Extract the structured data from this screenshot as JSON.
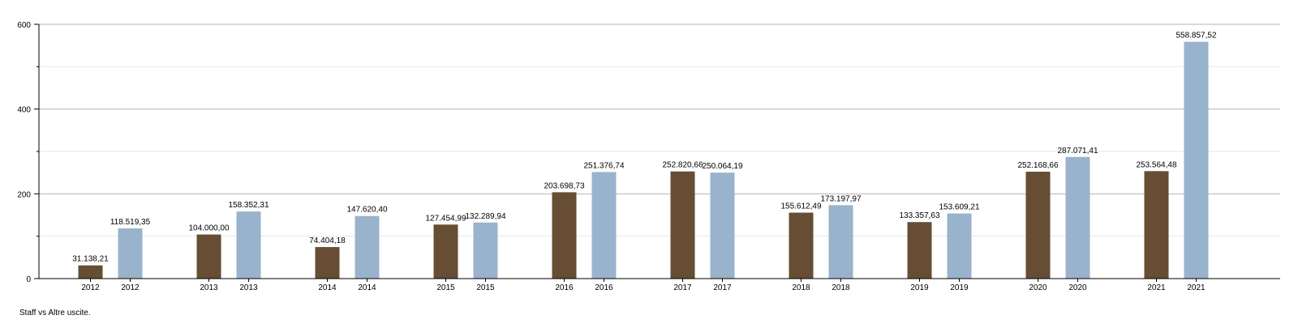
{
  "caption": "Staff vs Altre uscite.",
  "chart_data": {
    "type": "bar",
    "ylim": [
      0,
      600
    ],
    "yticks": [
      "0",
      "200",
      "400",
      "600"
    ],
    "y_tick_values": [
      0,
      200,
      400,
      600
    ],
    "grid": true,
    "legend": "none",
    "colors": {
      "staff": "#664d33",
      "altre": "#99b3cc",
      "grid_major": "#b3b3b3",
      "grid_minor": "#e6e6e6",
      "axis": "#000000"
    },
    "groups": [
      {
        "bars": [
          {
            "label": "2012",
            "value": 31.13821,
            "value_label": "31.138,21",
            "series": "staff"
          },
          {
            "label": "2012",
            "value": 118.51935,
            "value_label": "118.519,35",
            "series": "altre"
          }
        ]
      },
      {
        "bars": [
          {
            "label": "2013",
            "value": 104.0,
            "value_label": "104.000,00",
            "series": "staff"
          },
          {
            "label": "2013",
            "value": 158.35231,
            "value_label": "158.352,31",
            "series": "altre"
          }
        ]
      },
      {
        "bars": [
          {
            "label": "2014",
            "value": 74.40418,
            "value_label": "74.404,18",
            "series": "staff"
          },
          {
            "label": "2014",
            "value": 147.6204,
            "value_label": "147.620,40",
            "series": "altre"
          }
        ]
      },
      {
        "bars": [
          {
            "label": "2015",
            "value": 127.45499,
            "value_label": "127.454,99",
            "series": "staff"
          },
          {
            "label": "2015",
            "value": 132.28994,
            "value_label": "132.289,94",
            "series": "altre"
          }
        ]
      },
      {
        "bars": [
          {
            "label": "2016",
            "value": 203.69873,
            "value_label": "203.698,73",
            "series": "staff"
          },
          {
            "label": "2016",
            "value": 251.37674,
            "value_label": "251.376,74",
            "series": "altre"
          }
        ]
      },
      {
        "bars": [
          {
            "label": "2017",
            "value": 252.82066,
            "value_label": "252.820,66",
            "series": "staff"
          },
          {
            "label": "2017",
            "value": 250.06419,
            "value_label": "250.064,19",
            "series": "altre"
          }
        ]
      },
      {
        "bars": [
          {
            "label": "2018",
            "value": 155.61249,
            "value_label": "155.612,49",
            "series": "staff"
          },
          {
            "label": "2018",
            "value": 173.19797,
            "value_label": "173.197,97",
            "series": "altre"
          }
        ]
      },
      {
        "bars": [
          {
            "label": "2019",
            "value": 133.35763,
            "value_label": "133.357,63",
            "series": "staff"
          },
          {
            "label": "2019",
            "value": 153.60921,
            "value_label": "153.609,21",
            "series": "altre"
          }
        ]
      },
      {
        "bars": [
          {
            "label": "2020",
            "value": 252.16866,
            "value_label": "252.168,66",
            "series": "staff"
          },
          {
            "label": "2020",
            "value": 287.07141,
            "value_label": "287.071,41",
            "series": "altre"
          }
        ]
      },
      {
        "bars": [
          {
            "label": "2021",
            "value": 253.56448,
            "value_label": "253.564,48",
            "series": "staff"
          },
          {
            "label": "2021",
            "value": 558.85752,
            "value_label": "558.857,52",
            "series": "altre"
          }
        ]
      }
    ]
  }
}
